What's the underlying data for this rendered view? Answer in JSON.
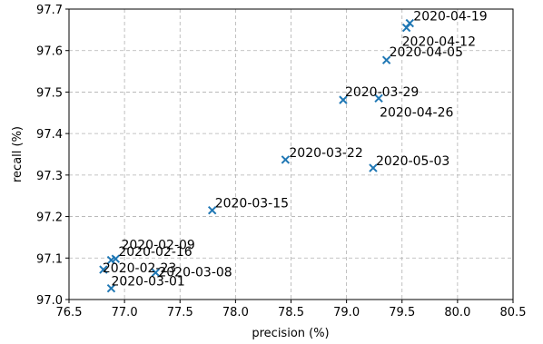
{
  "chart_data": {
    "type": "scatter",
    "title": "",
    "xlabel": "precision (%)",
    "ylabel": "recall (%)",
    "xlim": [
      76.5,
      80.5
    ],
    "ylim": [
      97.0,
      97.7
    ],
    "x_ticks": [
      "76.5",
      "77.0",
      "77.5",
      "78.0",
      "78.5",
      "79.0",
      "79.5",
      "80.0",
      "80.5"
    ],
    "y_ticks": [
      "97.0",
      "97.1",
      "97.2",
      "97.3",
      "97.4",
      "97.5",
      "97.6",
      "97.7"
    ],
    "grid": true,
    "marker": "x",
    "color": "#1f77b4",
    "points": [
      {
        "label": "2020-02-09",
        "x": 76.88,
        "y": 97.095
      },
      {
        "label": "2020-02-16",
        "x": 76.92,
        "y": 97.098
      },
      {
        "label": "2020-02-23",
        "x": 76.81,
        "y": 97.072
      },
      {
        "label": "2020-03-01",
        "x": 76.88,
        "y": 97.027
      },
      {
        "label": "2020-03-08",
        "x": 77.28,
        "y": 97.065
      },
      {
        "label": "2020-03-15",
        "x": 77.79,
        "y": 97.215
      },
      {
        "label": "2020-03-22",
        "x": 78.45,
        "y": 97.337
      },
      {
        "label": "2020-03-29",
        "x": 78.97,
        "y": 97.481
      },
      {
        "label": "2020-04-05",
        "x": 79.36,
        "y": 97.577
      },
      {
        "label": "2020-04-12",
        "x": 79.54,
        "y": 97.655
      },
      {
        "label": "2020-04-19",
        "x": 79.57,
        "y": 97.666
      },
      {
        "label": "2020-04-26",
        "x": 79.29,
        "y": 97.485
      },
      {
        "label": "2020-05-03",
        "x": 79.24,
        "y": 97.317
      }
    ]
  }
}
